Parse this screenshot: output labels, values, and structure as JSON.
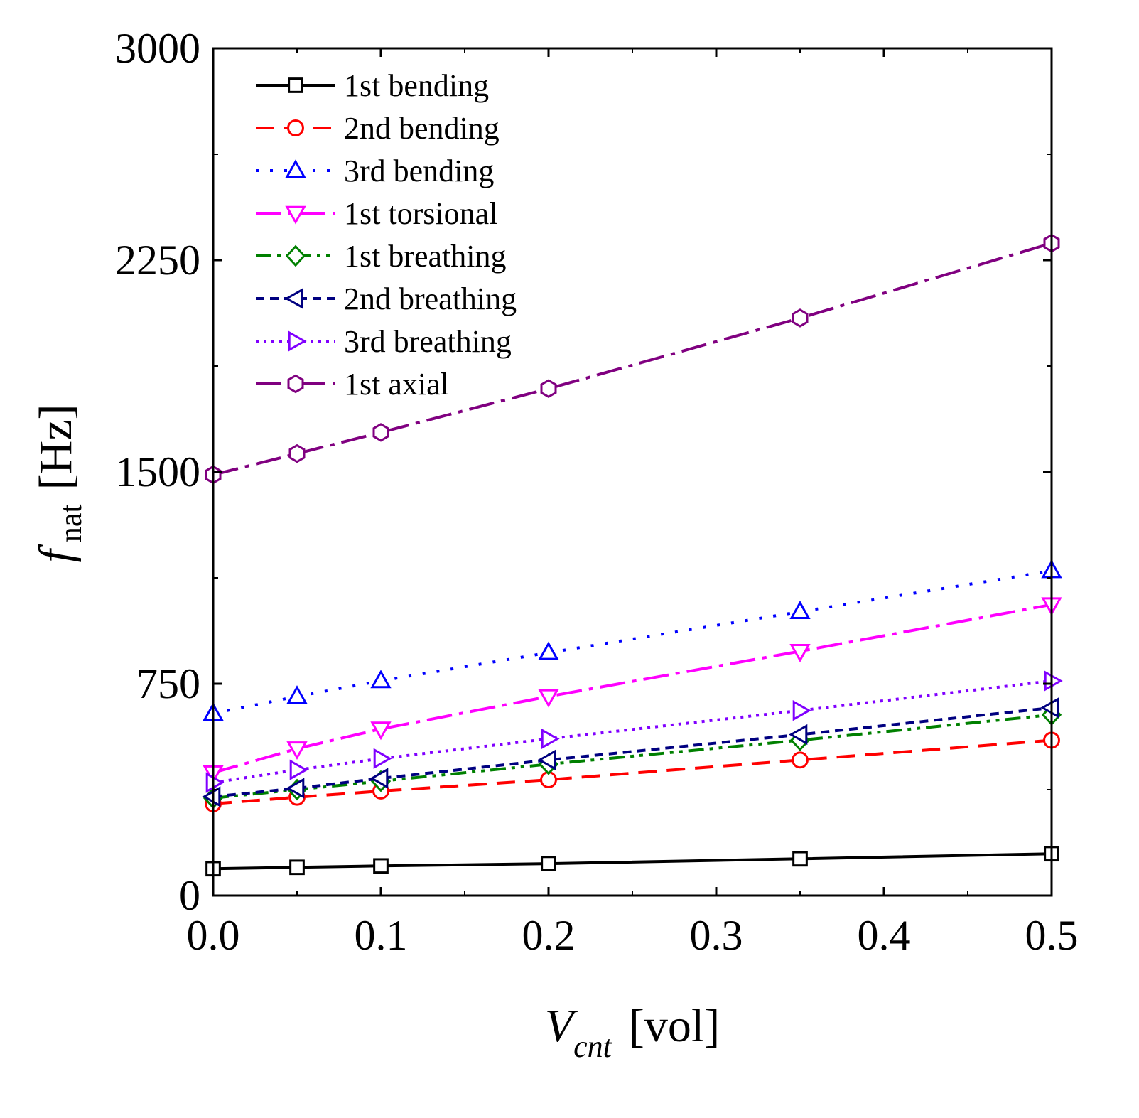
{
  "chart_data": {
    "type": "line",
    "title": "",
    "xlabel": {
      "symbol": "V",
      "subscript": "cnt",
      "unit": "[vol]"
    },
    "ylabel": {
      "symbol": "f",
      "subscript": "nat",
      "unit": "[Hz]"
    },
    "xlim": [
      0,
      0.5
    ],
    "ylim": [
      0,
      3000
    ],
    "x_ticks": [
      {
        "value": 0.0,
        "label": "0.0"
      },
      {
        "value": 0.1,
        "label": "0.1"
      },
      {
        "value": 0.2,
        "label": "0.2"
      },
      {
        "value": 0.3,
        "label": "0.3"
      },
      {
        "value": 0.4,
        "label": "0.4"
      },
      {
        "value": 0.5,
        "label": "0.5"
      }
    ],
    "y_ticks": [
      {
        "value": 0,
        "label": "0"
      },
      {
        "value": 750,
        "label": "750"
      },
      {
        "value": 1500,
        "label": "1500"
      },
      {
        "value": 2250,
        "label": "2250"
      },
      {
        "value": 3000,
        "label": "3000"
      }
    ],
    "grid": false,
    "legend_position": "top-left",
    "x": [
      0.0,
      0.05,
      0.1,
      0.2,
      0.35,
      0.5
    ],
    "series": [
      {
        "name": "1st bending",
        "color": "#000000",
        "marker": "square",
        "dash": "solid",
        "values": [
          95,
          100,
          105,
          113,
          130,
          148
        ]
      },
      {
        "name": "2nd bending",
        "color": "#ff0000",
        "marker": "circle",
        "dash": "dash",
        "values": [
          325,
          348,
          370,
          410,
          480,
          550
        ]
      },
      {
        "name": "3rd bending",
        "color": "#0000ff",
        "marker": "triangle-up",
        "dash": "dot",
        "values": [
          645,
          705,
          760,
          860,
          1005,
          1150
        ]
      },
      {
        "name": "1st torsional",
        "color": "#ff00ff",
        "marker": "triangle-down",
        "dash": "dashdot",
        "values": [
          435,
          520,
          590,
          705,
          865,
          1030
        ]
      },
      {
        "name": "1st breathing",
        "color": "#008000",
        "marker": "diamond",
        "dash": "dashdotdot",
        "values": [
          345,
          375,
          405,
          465,
          550,
          640
        ]
      },
      {
        "name": "2nd breathing",
        "color": "#000080",
        "marker": "triangle-left",
        "dash": "shortdash",
        "values": [
          350,
          380,
          415,
          480,
          570,
          665
        ]
      },
      {
        "name": "3rd breathing",
        "color": "#8000ff",
        "marker": "triangle-right",
        "dash": "shortdot",
        "values": [
          400,
          445,
          485,
          555,
          655,
          760
        ]
      },
      {
        "name": "1st axial",
        "color": "#800080",
        "marker": "hexagon",
        "dash": "dashdot",
        "values": [
          1490,
          1565,
          1640,
          1795,
          2045,
          2310
        ]
      }
    ]
  }
}
